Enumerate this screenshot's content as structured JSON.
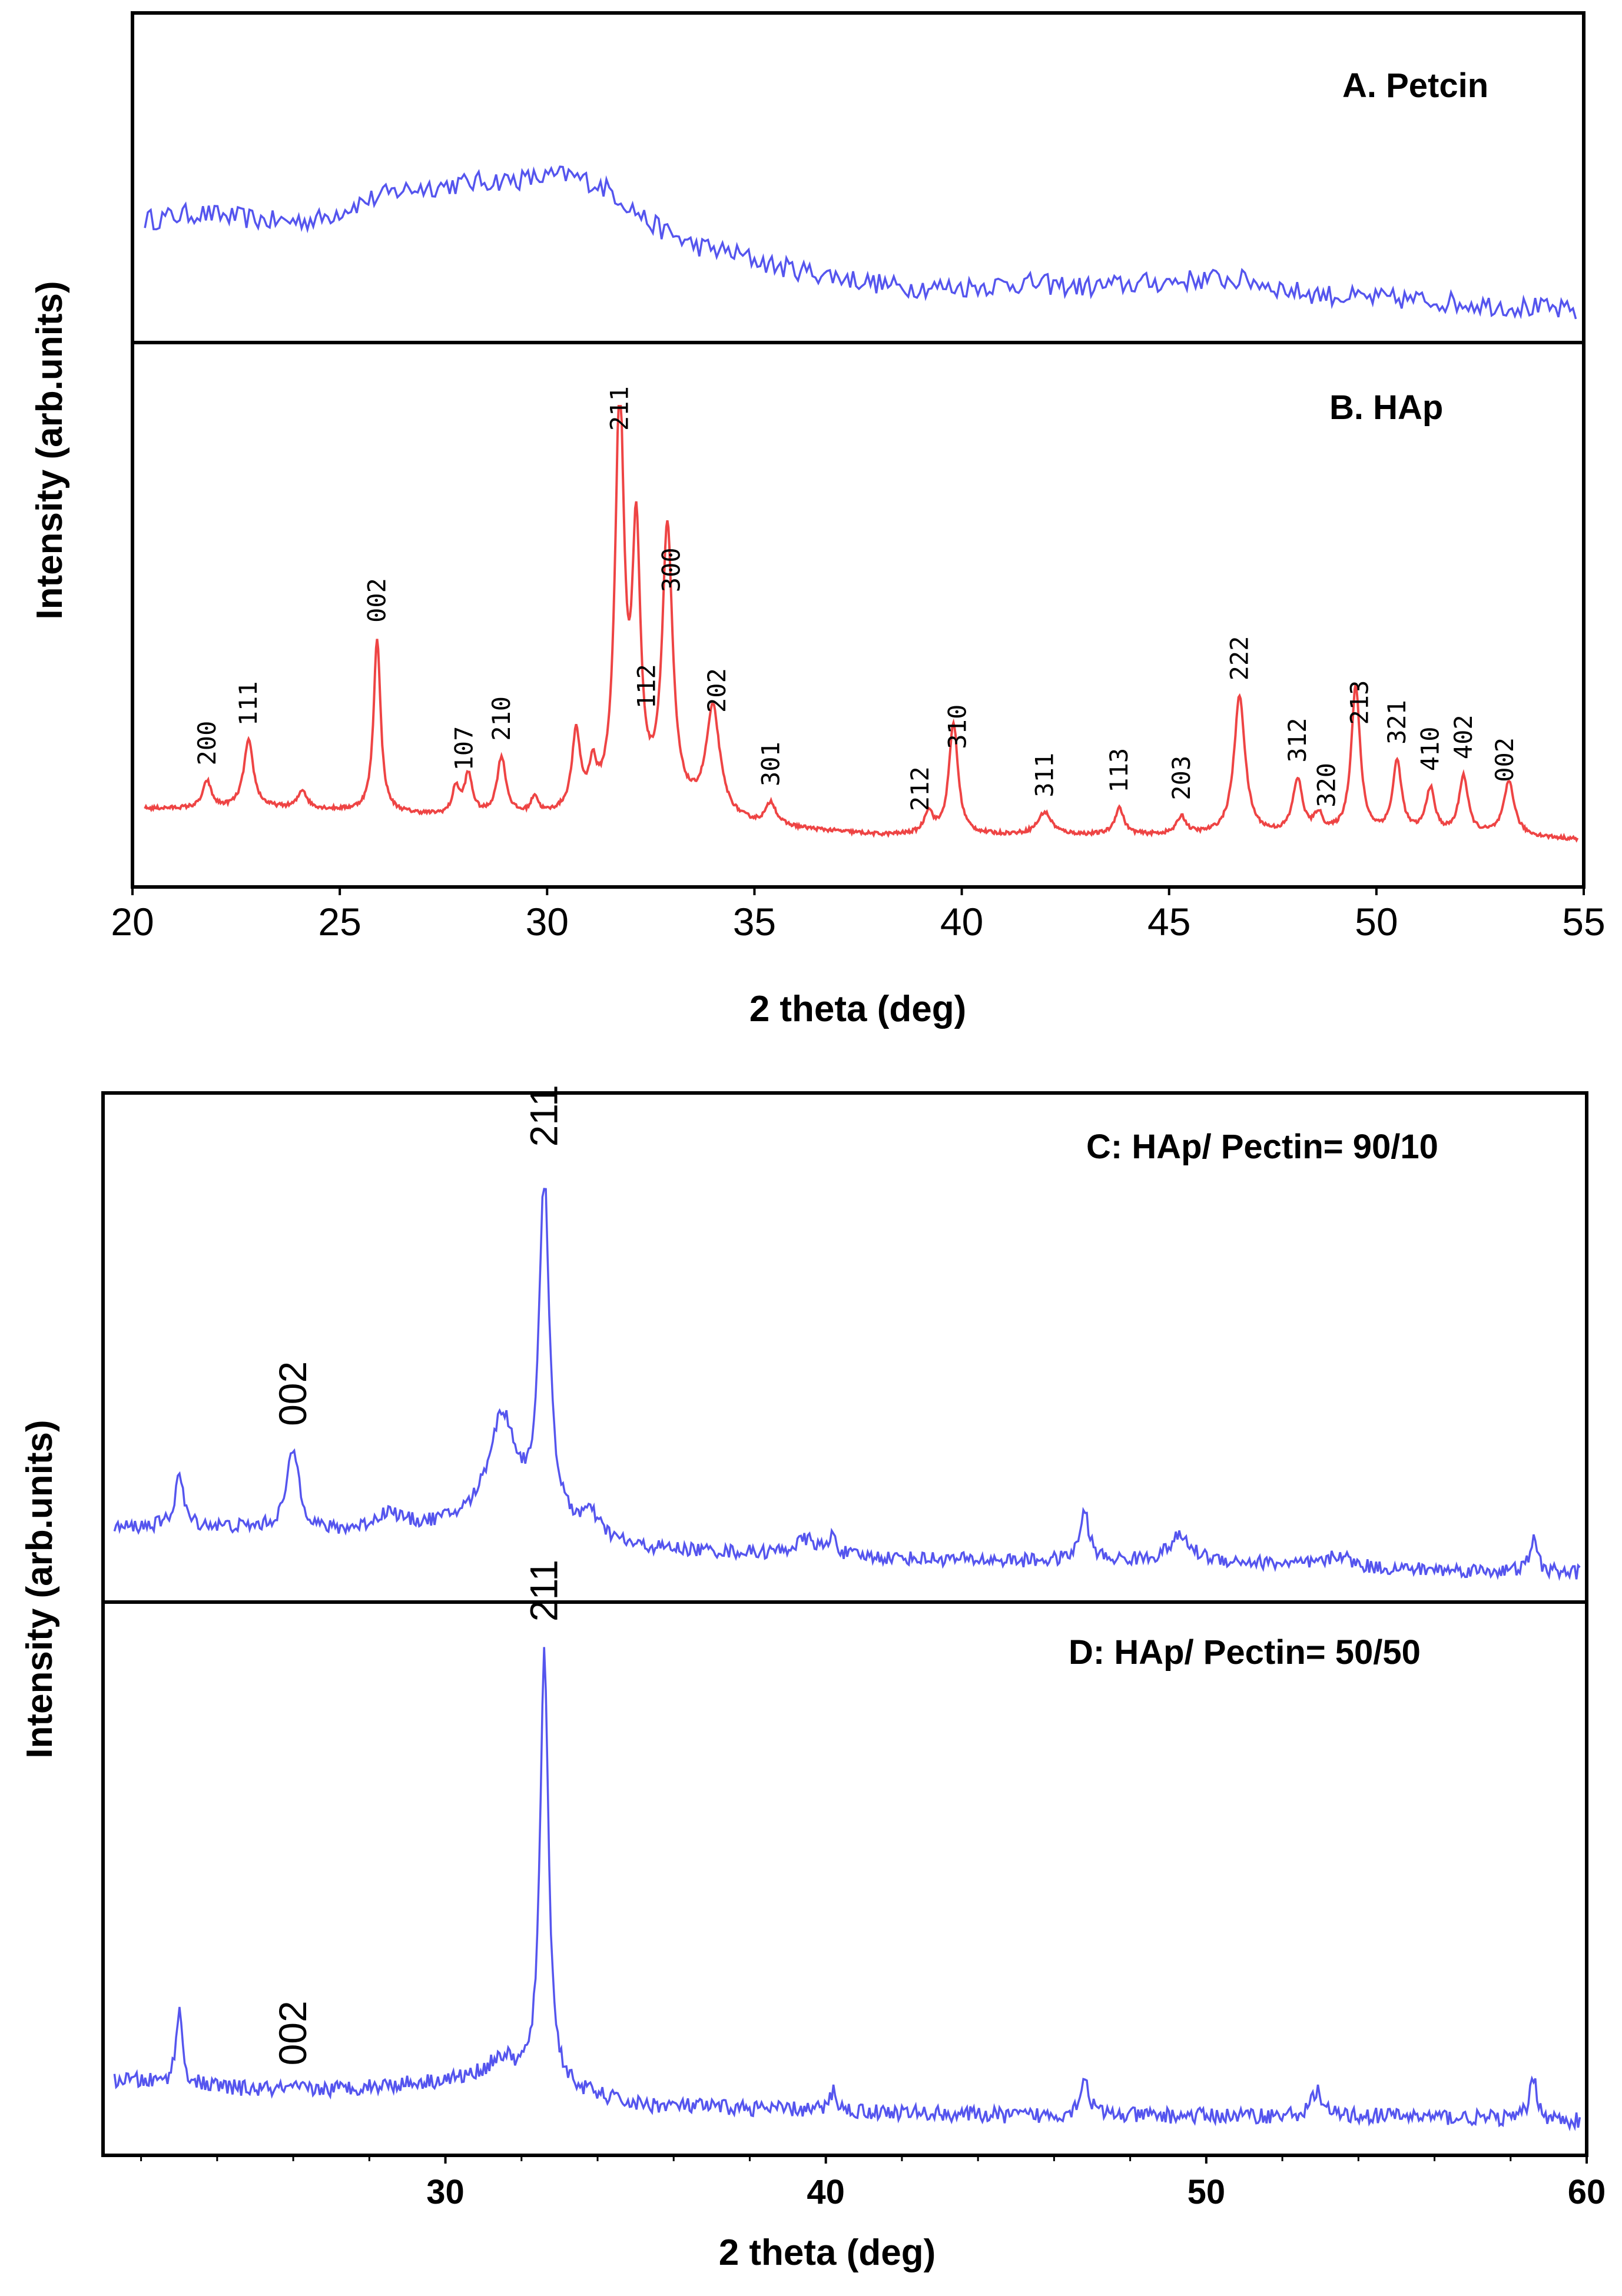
{
  "figure": {
    "top_ylabel": "Intensity (arb.units)",
    "top_xlabel": "2 theta (deg)",
    "bottom_ylabel": "Intensity (arb.units)",
    "bottom_xlabel": "2 theta (deg)"
  },
  "chart_data": [
    {
      "type": "line",
      "panel": "A",
      "title": "A. Petcin",
      "color": "#5555ee",
      "xlim": [
        20,
        55
      ],
      "ylim": [
        0,
        1
      ],
      "x": [
        20.5,
        21.5,
        22.5,
        23.5,
        24.5,
        25.5,
        26.5,
        27.5,
        28.5,
        29.5,
        30.5,
        31.0,
        31.5,
        32.5,
        33.5,
        34.5,
        35.5,
        37.0,
        38.5,
        40.0,
        41.5,
        43.0,
        44.5,
        46.0,
        47.0,
        48.0,
        49.5,
        51.0,
        52.5,
        54.0,
        55.0
      ],
      "y": [
        0.52,
        0.55,
        0.53,
        0.51,
        0.52,
        0.6,
        0.66,
        0.68,
        0.7,
        0.71,
        0.73,
        0.7,
        0.66,
        0.5,
        0.4,
        0.36,
        0.3,
        0.25,
        0.2,
        0.2,
        0.22,
        0.2,
        0.22,
        0.24,
        0.23,
        0.18,
        0.15,
        0.14,
        0.12,
        0.1,
        0.08
      ]
    },
    {
      "type": "line",
      "panel": "B",
      "title": "B. HAp",
      "color": "#ee4444",
      "xlim": [
        20,
        55
      ],
      "ylim": [
        0,
        1
      ],
      "xticks": [
        20,
        25,
        30,
        35,
        40,
        45,
        50,
        55
      ],
      "baseline_x": [
        20,
        22,
        24,
        26,
        28,
        30,
        31,
        33,
        35,
        38,
        42,
        46,
        50,
        53,
        55
      ],
      "baseline_y": [
        0.1,
        0.1,
        0.1,
        0.09,
        0.08,
        0.08,
        0.09,
        0.09,
        0.06,
        0.04,
        0.04,
        0.04,
        0.04,
        0.04,
        0.03
      ],
      "peaks": [
        {
          "x": 21.8,
          "h": 0.06,
          "w": 0.12
        },
        {
          "x": 22.8,
          "h": 0.15,
          "w": 0.14
        },
        {
          "x": 24.1,
          "h": 0.04,
          "w": 0.12
        },
        {
          "x": 25.9,
          "h": 0.39,
          "w": 0.1
        },
        {
          "x": 27.8,
          "h": 0.06,
          "w": 0.1
        },
        {
          "x": 28.1,
          "h": 0.09,
          "w": 0.12
        },
        {
          "x": 28.9,
          "h": 0.13,
          "w": 0.13
        },
        {
          "x": 29.7,
          "h": 0.04,
          "w": 0.1
        },
        {
          "x": 30.7,
          "h": 0.17,
          "w": 0.12
        },
        {
          "x": 31.1,
          "h": 0.08,
          "w": 0.1
        },
        {
          "x": 31.75,
          "h": 0.91,
          "w": 0.13
        },
        {
          "x": 32.15,
          "h": 0.58,
          "w": 0.12
        },
        {
          "x": 32.9,
          "h": 0.62,
          "w": 0.15
        },
        {
          "x": 34.0,
          "h": 0.24,
          "w": 0.2
        },
        {
          "x": 35.4,
          "h": 0.05,
          "w": 0.15
        },
        {
          "x": 39.2,
          "h": 0.05,
          "w": 0.12
        },
        {
          "x": 39.8,
          "h": 0.25,
          "w": 0.13
        },
        {
          "x": 42.0,
          "h": 0.05,
          "w": 0.2
        },
        {
          "x": 43.8,
          "h": 0.06,
          "w": 0.13
        },
        {
          "x": 45.3,
          "h": 0.04,
          "w": 0.13
        },
        {
          "x": 46.7,
          "h": 0.31,
          "w": 0.16
        },
        {
          "x": 48.1,
          "h": 0.12,
          "w": 0.14
        },
        {
          "x": 48.6,
          "h": 0.04,
          "w": 0.12
        },
        {
          "x": 49.5,
          "h": 0.33,
          "w": 0.13
        },
        {
          "x": 50.5,
          "h": 0.16,
          "w": 0.13
        },
        {
          "x": 51.3,
          "h": 0.1,
          "w": 0.13
        },
        {
          "x": 52.1,
          "h": 0.13,
          "w": 0.13
        },
        {
          "x": 53.2,
          "h": 0.12,
          "w": 0.15
        }
      ],
      "annotations": [
        {
          "label": "200",
          "x": 21.8
        },
        {
          "label": "111",
          "x": 22.8
        },
        {
          "label": "002",
          "x": 25.9
        },
        {
          "label": "107",
          "x": 28.0
        },
        {
          "label": "210",
          "x": 28.9
        },
        {
          "label": "211",
          "x": 31.75
        },
        {
          "label": "112",
          "x": 32.4
        },
        {
          "label": "300",
          "x": 33.0
        },
        {
          "label": "202",
          "x": 34.1
        },
        {
          "label": "301",
          "x": 35.4
        },
        {
          "label": "212",
          "x": 39.0
        },
        {
          "label": "310",
          "x": 39.9
        },
        {
          "label": "311",
          "x": 42.0
        },
        {
          "label": "113",
          "x": 43.8
        },
        {
          "label": "203",
          "x": 45.3
        },
        {
          "label": "222",
          "x": 46.7
        },
        {
          "label": "312",
          "x": 48.1
        },
        {
          "label": "320",
          "x": 48.8
        },
        {
          "label": "213",
          "x": 49.6
        },
        {
          "label": "321",
          "x": 50.5
        },
        {
          "label": "410",
          "x": 51.3
        },
        {
          "label": "402",
          "x": 52.1
        },
        {
          "label": "002",
          "x": 53.1
        }
      ]
    },
    {
      "type": "line",
      "panel": "C",
      "title": "C: HAp/ Pectin= 90/10",
      "color": "#5555ee",
      "xlim": [
        21,
        60
      ],
      "ylim": [
        0,
        1
      ],
      "baseline_x": [
        21,
        23,
        25,
        27,
        29,
        31,
        33,
        35,
        40,
        45,
        50,
        55,
        60
      ],
      "baseline_y": [
        0.15,
        0.16,
        0.15,
        0.14,
        0.15,
        0.16,
        0.14,
        0.1,
        0.08,
        0.07,
        0.07,
        0.05,
        0.04
      ],
      "peaks": [
        {
          "x": 23.0,
          "h": 0.13,
          "w": 0.12
        },
        {
          "x": 26.0,
          "h": 0.2,
          "w": 0.2
        },
        {
          "x": 28.5,
          "h": 0.04,
          "w": 0.4
        },
        {
          "x": 31.5,
          "h": 0.27,
          "w": 0.45
        },
        {
          "x": 32.6,
          "h": 0.86,
          "w": 0.16
        },
        {
          "x": 33.8,
          "h": 0.05,
          "w": 0.3
        },
        {
          "x": 39.5,
          "h": 0.04,
          "w": 0.4
        },
        {
          "x": 40.2,
          "h": 0.05,
          "w": 0.1
        },
        {
          "x": 46.8,
          "h": 0.12,
          "w": 0.15
        },
        {
          "x": 49.3,
          "h": 0.06,
          "w": 0.35
        },
        {
          "x": 53.5,
          "h": 0.03,
          "w": 0.3
        },
        {
          "x": 58.6,
          "h": 0.08,
          "w": 0.12
        }
      ],
      "annotations": [
        {
          "label": "002",
          "x": 26.0
        },
        {
          "label": "211",
          "x": 32.6
        }
      ]
    },
    {
      "type": "line",
      "panel": "D",
      "title": "D: HAp/ Pectin= 50/50",
      "color": "#5555ee",
      "xlim": [
        21,
        60
      ],
      "ylim": [
        0,
        1
      ],
      "xticks": [
        30,
        40,
        50,
        60
      ],
      "baseline_x": [
        21,
        23,
        25,
        27,
        29,
        31,
        33,
        35,
        40,
        45,
        50,
        55,
        60
      ],
      "baseline_y": [
        0.12,
        0.11,
        0.1,
        0.1,
        0.11,
        0.12,
        0.1,
        0.07,
        0.06,
        0.05,
        0.05,
        0.05,
        0.04
      ],
      "peaks": [
        {
          "x": 23.0,
          "h": 0.14,
          "w": 0.1
        },
        {
          "x": 31.5,
          "h": 0.04,
          "w": 0.4
        },
        {
          "x": 32.6,
          "h": 0.83,
          "w": 0.13
        },
        {
          "x": 40.2,
          "h": 0.04,
          "w": 0.1
        },
        {
          "x": 46.8,
          "h": 0.07,
          "w": 0.15
        },
        {
          "x": 52.9,
          "h": 0.05,
          "w": 0.15
        },
        {
          "x": 58.6,
          "h": 0.08,
          "w": 0.12
        }
      ],
      "annotations": [
        {
          "label": "002",
          "x": 26.0
        },
        {
          "label": "211",
          "x": 32.6
        }
      ]
    }
  ]
}
